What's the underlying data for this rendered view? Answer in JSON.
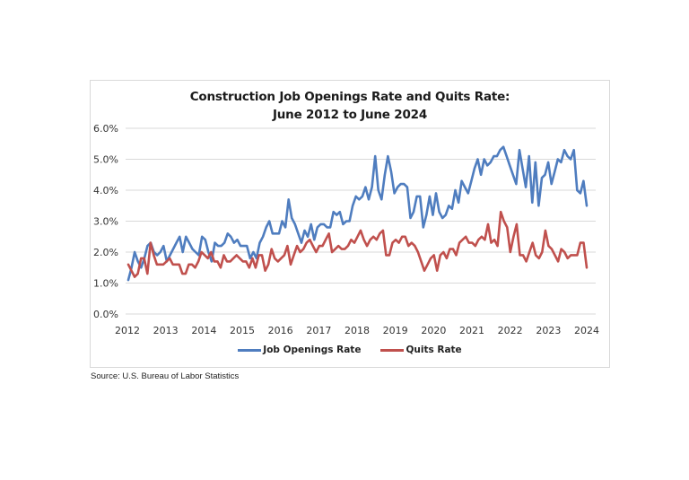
{
  "chart_data": {
    "type": "line",
    "title": "Construction Job Openings Rate and Quits Rate:",
    "subtitle": "June 2012 to June 2024",
    "xlabel": "",
    "ylabel": "",
    "ylim": [
      0,
      6
    ],
    "yticks": [
      "0.0%",
      "1.0%",
      "2.0%",
      "3.0%",
      "4.0%",
      "5.0%",
      "6.0%"
    ],
    "ytick_values": [
      0,
      1,
      2,
      3,
      4,
      5,
      6
    ],
    "xticks": [
      "2012",
      "2013",
      "2014",
      "2015",
      "2016",
      "2017",
      "2018",
      "2019",
      "2020",
      "2021",
      "2022",
      "2023",
      "2024"
    ],
    "grid": true,
    "legend": "bottom",
    "x_range": "June 2012 to June 2024 (monthly)",
    "series": [
      {
        "name": "Job Openings Rate",
        "color": "#4f7dbf",
        "values": [
          1.1,
          1.5,
          2.0,
          1.7,
          1.5,
          1.8,
          2.2,
          2.3,
          2.0,
          1.9,
          2.0,
          2.2,
          1.7,
          1.9,
          2.1,
          2.3,
          2.5,
          2.0,
          2.5,
          2.3,
          2.1,
          2.0,
          1.9,
          2.5,
          2.4,
          2.0,
          1.7,
          2.3,
          2.2,
          2.2,
          2.3,
          2.6,
          2.5,
          2.3,
          2.4,
          2.2,
          2.2,
          2.2,
          1.8,
          2.0,
          1.8,
          2.3,
          2.5,
          2.8,
          3.0,
          2.6,
          2.6,
          2.6,
          3.0,
          2.8,
          3.7,
          3.1,
          2.9,
          2.6,
          2.3,
          2.7,
          2.5,
          2.9,
          2.4,
          2.8,
          2.9,
          2.9,
          2.8,
          2.8,
          3.3,
          3.2,
          3.3,
          2.9,
          3.0,
          3.0,
          3.5,
          3.8,
          3.7,
          3.8,
          4.1,
          3.7,
          4.1,
          5.1,
          4.0,
          3.7,
          4.5,
          5.1,
          4.6,
          3.9,
          4.1,
          4.2,
          4.2,
          4.1,
          3.1,
          3.3,
          3.8,
          3.8,
          2.8,
          3.2,
          3.8,
          3.2,
          3.9,
          3.3,
          3.1,
          3.2,
          3.5,
          3.4,
          4.0,
          3.6,
          4.3,
          4.1,
          3.9,
          4.3,
          4.7,
          5.0,
          4.5,
          5.0,
          4.8,
          4.9,
          5.1,
          5.1,
          5.3,
          5.4,
          5.1,
          4.8,
          4.5,
          4.2,
          5.3,
          4.7,
          4.1,
          5.1,
          3.6,
          4.9,
          3.5,
          4.4,
          4.5,
          4.9,
          4.2,
          4.6,
          5.0,
          4.9,
          5.3,
          5.1,
          5.0,
          5.3,
          4.0,
          3.9,
          4.3,
          3.5
        ]
      },
      {
        "name": "Quits Rate",
        "color": "#c0504d",
        "values": [
          1.6,
          1.4,
          1.2,
          1.3,
          1.8,
          1.8,
          1.3,
          2.3,
          1.9,
          1.6,
          1.6,
          1.6,
          1.7,
          1.8,
          1.6,
          1.6,
          1.6,
          1.3,
          1.3,
          1.6,
          1.6,
          1.5,
          1.7,
          2.0,
          1.9,
          1.8,
          2.0,
          1.7,
          1.7,
          1.5,
          1.9,
          1.7,
          1.7,
          1.8,
          1.9,
          1.8,
          1.7,
          1.7,
          1.5,
          1.8,
          1.5,
          1.9,
          1.9,
          1.4,
          1.6,
          2.1,
          1.8,
          1.7,
          1.8,
          1.9,
          2.2,
          1.6,
          1.9,
          2.2,
          2.0,
          2.1,
          2.3,
          2.4,
          2.2,
          2.0,
          2.2,
          2.2,
          2.4,
          2.6,
          2.0,
          2.1,
          2.2,
          2.1,
          2.1,
          2.2,
          2.4,
          2.3,
          2.5,
          2.7,
          2.4,
          2.2,
          2.4,
          2.5,
          2.4,
          2.6,
          2.7,
          1.9,
          1.9,
          2.3,
          2.4,
          2.3,
          2.5,
          2.5,
          2.2,
          2.3,
          2.2,
          2.0,
          1.7,
          1.4,
          1.6,
          1.8,
          1.9,
          1.4,
          1.9,
          2.0,
          1.8,
          2.1,
          2.1,
          1.9,
          2.3,
          2.4,
          2.5,
          2.3,
          2.3,
          2.2,
          2.4,
          2.5,
          2.4,
          2.9,
          2.3,
          2.4,
          2.2,
          3.3,
          3.0,
          2.8,
          2.0,
          2.5,
          2.9,
          1.9,
          1.9,
          1.7,
          2.0,
          2.3,
          1.9,
          1.8,
          2.0,
          2.7,
          2.2,
          2.1,
          1.9,
          1.7,
          2.1,
          2.0,
          1.8,
          1.9,
          1.9,
          1.9,
          2.3,
          2.3,
          1.5
        ]
      }
    ]
  },
  "source_note": "Source: U.S. Bureau of Labor Statistics"
}
